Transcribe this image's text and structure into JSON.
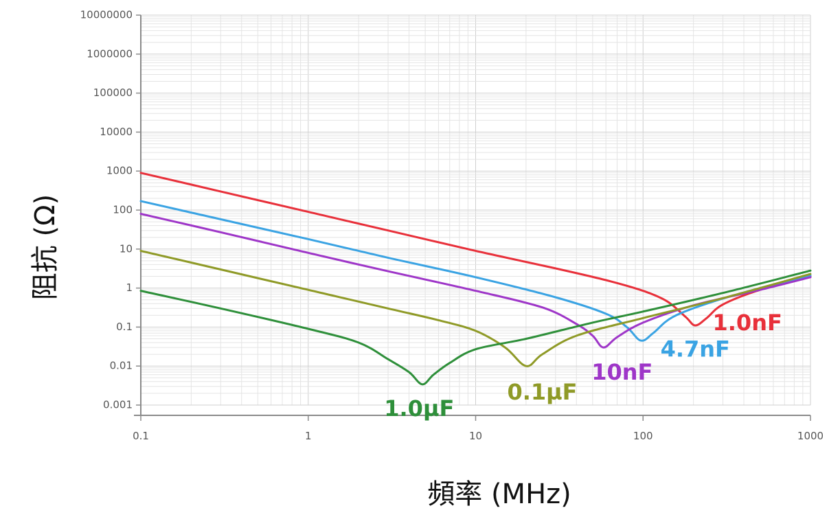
{
  "chart_data": {
    "type": "line",
    "xlabel": "頻率 (MHz)",
    "ylabel": "阻抗 (Ω)",
    "x_scale": "log",
    "y_scale": "log",
    "xlim": [
      0.1,
      1000
    ],
    "ylim": [
      0.001,
      10000000
    ],
    "grid": true,
    "x_ticks": [
      {
        "value": 0.1,
        "label": "0.1"
      },
      {
        "value": 1,
        "label": "1"
      },
      {
        "value": 10,
        "label": "10"
      },
      {
        "value": 100,
        "label": "100"
      },
      {
        "value": 1000,
        "label": "1000"
      }
    ],
    "y_ticks": [
      {
        "value": 10000000,
        "label": "10000000"
      },
      {
        "value": 1000000,
        "label": "1000000"
      },
      {
        "value": 100000,
        "label": "100000"
      },
      {
        "value": 10000,
        "label": "10000"
      },
      {
        "value": 1000,
        "label": "1000"
      },
      {
        "value": 100,
        "label": "100"
      },
      {
        "value": 10,
        "label": "10"
      },
      {
        "value": 1,
        "label": "1"
      },
      {
        "value": 0.1,
        "label": "0.1"
      },
      {
        "value": 0.01,
        "label": "0.01"
      },
      {
        "value": 0.001,
        "label": "0.001"
      }
    ],
    "series": [
      {
        "name": "1.0nF",
        "color": "#e8303a",
        "label_position": {
          "x": 420,
          "y": 0.12
        },
        "points": [
          [
            0.1,
            900
          ],
          [
            0.3,
            300
          ],
          [
            1,
            90
          ],
          [
            3,
            30
          ],
          [
            10,
            9
          ],
          [
            30,
            3.2
          ],
          [
            60,
            1.6
          ],
          [
            100,
            0.85
          ],
          [
            140,
            0.45
          ],
          [
            180,
            0.18
          ],
          [
            205,
            0.11
          ],
          [
            240,
            0.17
          ],
          [
            300,
            0.38
          ],
          [
            500,
            0.9
          ],
          [
            1000,
            2
          ]
        ]
      },
      {
        "name": "4.7nF",
        "color": "#3aa3e3",
        "label_position": {
          "x": 205,
          "y": 0.025
        },
        "points": [
          [
            0.1,
            170
          ],
          [
            0.3,
            58
          ],
          [
            1,
            18
          ],
          [
            3,
            6
          ],
          [
            10,
            1.9
          ],
          [
            30,
            0.58
          ],
          [
            60,
            0.22
          ],
          [
            80,
            0.1
          ],
          [
            97,
            0.045
          ],
          [
            115,
            0.07
          ],
          [
            150,
            0.18
          ],
          [
            250,
            0.42
          ],
          [
            500,
            1
          ],
          [
            1000,
            2.1
          ]
        ]
      },
      {
        "name": "10nF",
        "color": "#9e36c8",
        "label_position": {
          "x": 75,
          "y": 0.0065
        },
        "points": [
          [
            0.1,
            80
          ],
          [
            0.3,
            27
          ],
          [
            1,
            8
          ],
          [
            3,
            2.7
          ],
          [
            10,
            0.85
          ],
          [
            25,
            0.32
          ],
          [
            40,
            0.12
          ],
          [
            50,
            0.06
          ],
          [
            58,
            0.03
          ],
          [
            70,
            0.055
          ],
          [
            100,
            0.13
          ],
          [
            200,
            0.36
          ],
          [
            500,
            0.9
          ],
          [
            1000,
            1.9
          ]
        ]
      },
      {
        "name": "0.1µF",
        "color": "#8f9a27",
        "label_position": {
          "x": 25,
          "y": 0.002
        },
        "points": [
          [
            0.1,
            9
          ],
          [
            0.3,
            3
          ],
          [
            1,
            0.9
          ],
          [
            3,
            0.3
          ],
          [
            6,
            0.15
          ],
          [
            10,
            0.08
          ],
          [
            15,
            0.03
          ],
          [
            20,
            0.01
          ],
          [
            25,
            0.02
          ],
          [
            40,
            0.06
          ],
          [
            100,
            0.17
          ],
          [
            300,
            0.55
          ],
          [
            1000,
            2.3
          ]
        ]
      },
      {
        "name": "1.0µF",
        "color": "#2e8f3a",
        "label_position": {
          "x": 4.6,
          "y": 0.00075
        },
        "points": [
          [
            0.1,
            0.85
          ],
          [
            0.3,
            0.3
          ],
          [
            1,
            0.09
          ],
          [
            2,
            0.04
          ],
          [
            3,
            0.015
          ],
          [
            4,
            0.007
          ],
          [
            4.8,
            0.0034
          ],
          [
            5.6,
            0.006
          ],
          [
            7,
            0.012
          ],
          [
            10,
            0.027
          ],
          [
            20,
            0.05
          ],
          [
            50,
            0.13
          ],
          [
            100,
            0.25
          ],
          [
            300,
            0.75
          ],
          [
            1000,
            2.8
          ]
        ]
      }
    ]
  }
}
